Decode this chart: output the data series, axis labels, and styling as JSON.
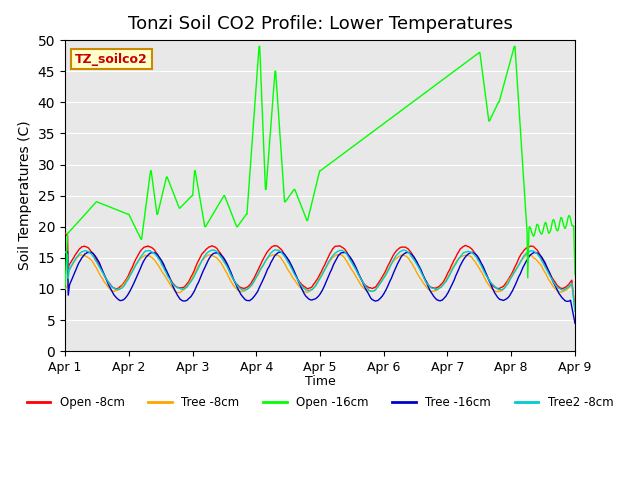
{
  "title": "Tonzi Soil CO2 Profile: Lower Temperatures",
  "ylabel": "Soil Temperatures (C)",
  "xlabel": "Time",
  "watermark": "TZ_soilco2",
  "xlim": [
    0,
    8
  ],
  "ylim": [
    0,
    50
  ],
  "yticks": [
    0,
    5,
    10,
    15,
    20,
    25,
    30,
    35,
    40,
    45,
    50
  ],
  "xtick_labels": [
    "Apr 1",
    "Apr 2",
    "Apr 3",
    "Apr 4",
    "Apr 5",
    "Apr 6",
    "Apr 7",
    "Apr 8",
    "Apr 9"
  ],
  "legend_entries": [
    "Open -8cm",
    "Tree -8cm",
    "Open -16cm",
    "Tree -16cm",
    "Tree2 -8cm"
  ],
  "legend_colors": [
    "#ff0000",
    "#ffa500",
    "#00ff00",
    "#0000cc",
    "#00cccc"
  ],
  "background_color": "#e8e8e8",
  "title_fontsize": 13,
  "watermark_color": "#cc0000",
  "watermark_bg": "#ffffcc",
  "watermark_border": "#cc8800"
}
